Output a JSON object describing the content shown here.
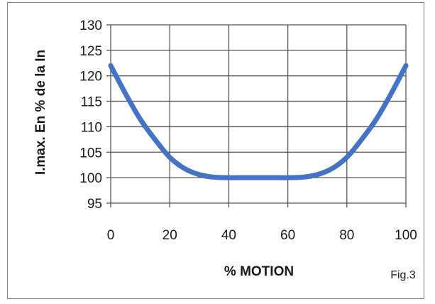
{
  "chart_data": {
    "type": "line",
    "title": "",
    "xlabel": "% MOTION",
    "ylabel": "I.max. En % de la In",
    "xlim": [
      0,
      100
    ],
    "ylim": [
      95,
      130
    ],
    "x_ticks": [
      "0",
      "20",
      "40",
      "60",
      "80",
      "100"
    ],
    "y_ticks": [
      "95",
      "100",
      "105",
      "110",
      "115",
      "120",
      "125",
      "130"
    ],
    "grid": true,
    "legend": "none",
    "annotation": "Fig.3",
    "series": [
      {
        "color": "#4472c4",
        "x": [
          0,
          5,
          10,
          15,
          20,
          25,
          30,
          35,
          40,
          45,
          50,
          55,
          60,
          65,
          70,
          75,
          80,
          85,
          90,
          95,
          100
        ],
        "y": [
          122,
          116.5,
          111.5,
          107.5,
          104,
          101.8,
          100.6,
          100.1,
          100,
          100,
          100,
          100,
          100,
          100.1,
          100.6,
          101.8,
          104,
          107.5,
          111.5,
          116.5,
          122
        ]
      }
    ]
  }
}
